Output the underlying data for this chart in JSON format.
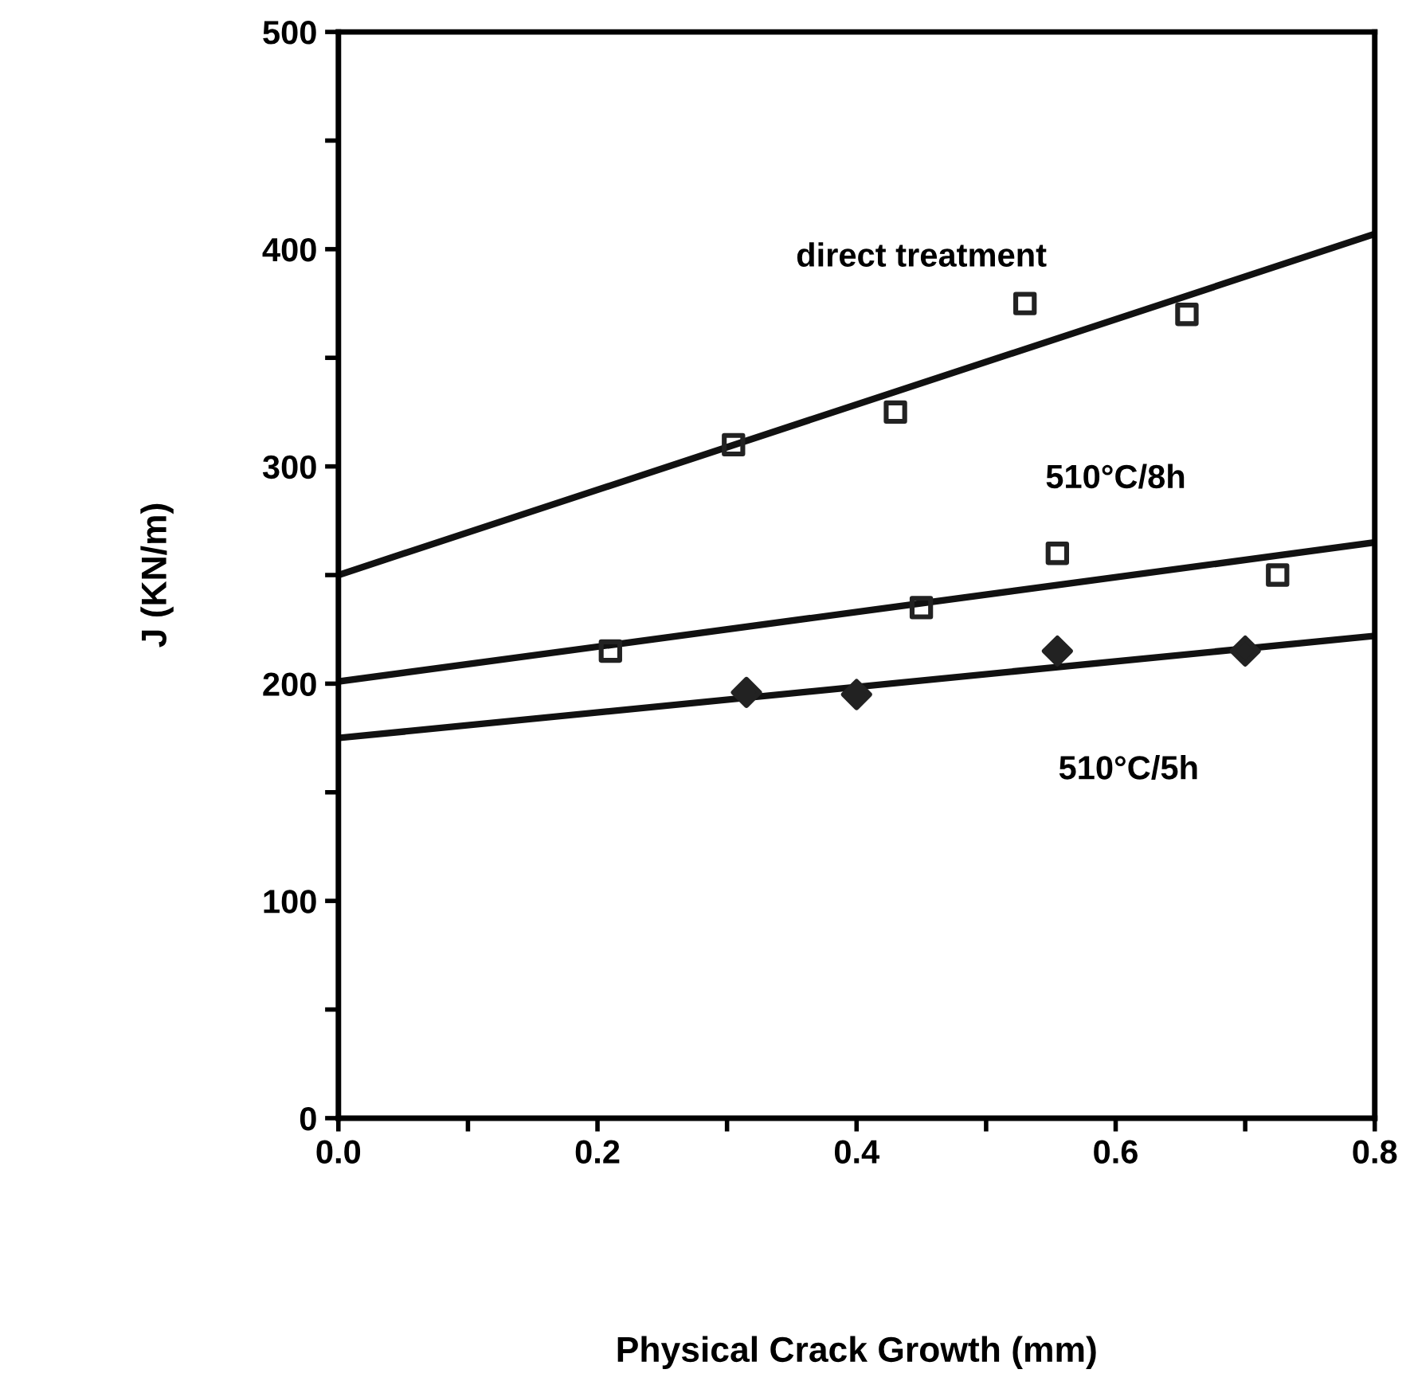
{
  "chart_data": {
    "type": "scatter",
    "xlabel": "Physical Crack Growth (mm)",
    "ylabel": "J (KN/m)",
    "xlim": [
      0,
      0.8
    ],
    "ylim": [
      0,
      500
    ],
    "xticks": [
      {
        "value": 0,
        "label": "0.0"
      },
      {
        "value": 0.1,
        "label": null
      },
      0.2,
      {
        "value": 0.3,
        "label": null
      },
      0.4,
      {
        "value": 0.5,
        "label": null
      },
      0.6,
      {
        "value": 0.7,
        "label": null
      },
      0.8
    ],
    "yticks": [
      0,
      {
        "value": 50,
        "label": null
      },
      100,
      {
        "value": 150,
        "label": null
      },
      200,
      {
        "value": 250,
        "label": null
      },
      300,
      {
        "value": 350,
        "label": null
      },
      400,
      {
        "value": 450,
        "label": null
      },
      500
    ],
    "grid": false,
    "series": [
      {
        "marker": "square",
        "color": "#222222",
        "x": [
          0.305,
          0.43,
          0.53,
          0.655
        ],
        "values": [
          310,
          325,
          375,
          370
        ]
      },
      {
        "type": "line",
        "marker": "none",
        "color": "#111111",
        "x": [
          0,
          0.8
        ],
        "values": [
          250,
          407
        ]
      },
      {
        "marker": "square",
        "color": "#222222",
        "x": [
          0.21,
          0.45,
          0.555,
          0.725
        ],
        "values": [
          215,
          235,
          260,
          250
        ]
      },
      {
        "type": "line",
        "marker": "none",
        "color": "#111111",
        "x": [
          0,
          0.8
        ],
        "values": [
          201,
          265
        ]
      },
      {
        "marker": "diamond",
        "color": "#222222",
        "x": [
          0.315,
          0.4,
          0.555,
          0.7
        ],
        "values": [
          196,
          195,
          215,
          215
        ]
      },
      {
        "type": "line",
        "marker": "none",
        "color": "#111111",
        "x": [
          0,
          0.8
        ],
        "values": [
          175,
          222
        ]
      }
    ],
    "annotations": [
      "direct treatment",
      "510°C/8h",
      "510°C/5h"
    ]
  }
}
